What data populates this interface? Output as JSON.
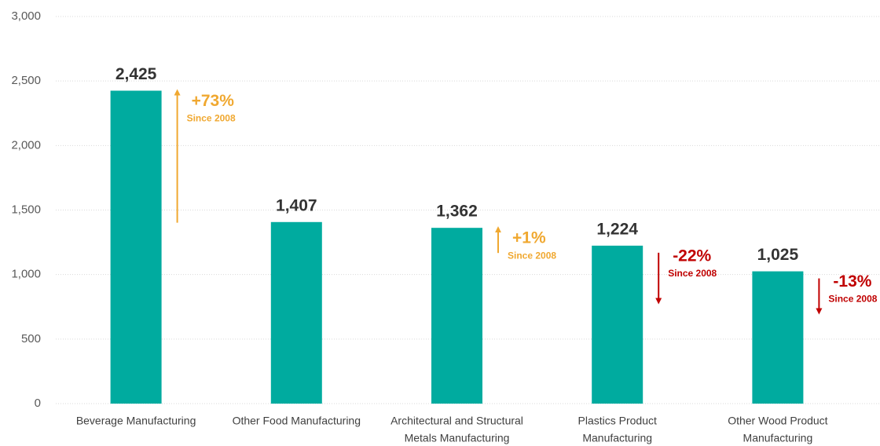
{
  "chart_data": {
    "type": "bar",
    "categories": [
      [
        "Beverage Manufacturing"
      ],
      [
        "Other Food Manufacturing"
      ],
      [
        "Architectural and Structural",
        "Metals Manufacturing"
      ],
      [
        "Plastics Product",
        "Manufacturing"
      ],
      [
        "Other Wood Product",
        "Manufacturing"
      ]
    ],
    "values": [
      2425,
      1407,
      1362,
      1224,
      1025
    ],
    "value_labels": [
      "2,425",
      "1,407",
      "1,362",
      "1,224",
      "1,025"
    ],
    "color": "#00ab9f",
    "changes": [
      {
        "bar": 0,
        "value": 73,
        "label": "+73%",
        "note": "Since 2008",
        "color": "#f0a830"
      },
      {
        "bar": 2,
        "value": 1,
        "label": "+1%",
        "note": "Since 2008",
        "color": "#f0a830"
      },
      {
        "bar": 3,
        "value": -22,
        "label": "-22%",
        "note": "Since 2008",
        "color": "#c00000"
      },
      {
        "bar": 4,
        "value": -13,
        "label": "-13%",
        "note": "Since 2008",
        "color": "#c00000"
      }
    ],
    "ylim": [
      0,
      3000
    ],
    "yticks": [
      0,
      {
        "value": 500,
        "label": "500"
      },
      {
        "value": 1000,
        "label": "1,000"
      },
      {
        "value": 1500,
        "label": "1,500"
      },
      {
        "value": 2000,
        "label": "2,000"
      },
      {
        "value": 2500,
        "label": "2,500"
      },
      {
        "value": 3000,
        "label": "3,000"
      }
    ],
    "grid": true
  }
}
